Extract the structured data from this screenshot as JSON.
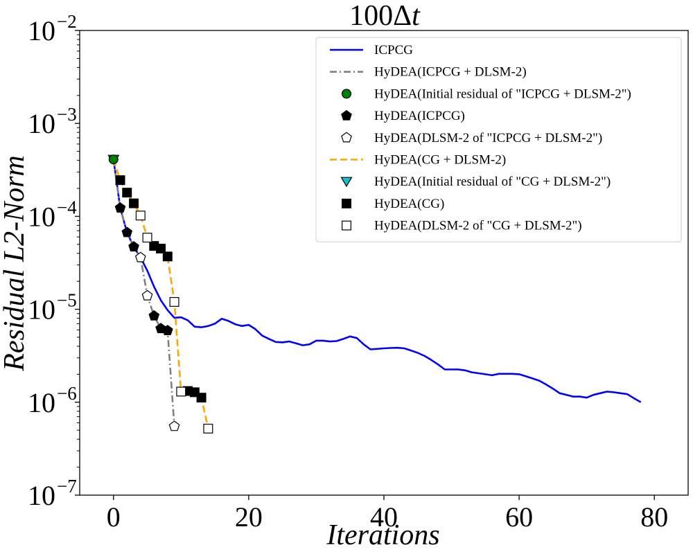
{
  "chart_data": {
    "type": "line",
    "title": "100Δt",
    "title_main": "100Δ",
    "title_var": "t",
    "xlabel": "Iterations",
    "ylabel": "Residual L2-Norm",
    "xlim": [
      -5,
      85
    ],
    "ylim": [
      1e-07,
      0.01
    ],
    "yscale": "log",
    "grid": false,
    "legend_position": "top-right",
    "x_ticks": [
      {
        "value": 0,
        "label": "0"
      },
      {
        "value": 20,
        "label": "20"
      },
      {
        "value": 40,
        "label": "40"
      },
      {
        "value": 60,
        "label": "60"
      },
      {
        "value": 80,
        "label": "80"
      }
    ],
    "y_ticks": [
      {
        "value": 1e-07,
        "base": "10",
        "exp": "−7"
      },
      {
        "value": 1e-06,
        "base": "10",
        "exp": "−6"
      },
      {
        "value": 1e-05,
        "base": "10",
        "exp": "−5"
      },
      {
        "value": 0.0001,
        "base": "10",
        "exp": "−4"
      },
      {
        "value": 0.001,
        "base": "10",
        "exp": "−3"
      },
      {
        "value": 0.01,
        "base": "10",
        "exp": "−2"
      }
    ],
    "series": [
      {
        "name": "ICPCG",
        "kind": "line",
        "color": "#0000ff",
        "dash": "solid",
        "x": [
          0,
          1,
          2,
          3,
          4,
          5,
          6,
          7,
          8,
          9,
          10,
          11,
          12,
          13,
          14,
          15,
          16,
          17,
          18,
          19,
          20,
          21,
          22,
          23,
          24,
          25,
          26,
          27,
          28,
          29,
          30,
          31,
          32,
          33,
          34,
          35,
          36,
          37,
          38,
          39,
          40,
          41,
          42,
          43,
          44,
          45,
          46,
          47,
          48,
          49,
          50,
          51,
          52,
          53,
          54,
          55,
          56,
          57,
          58,
          59,
          60,
          61,
          62,
          63,
          64,
          65,
          66,
          67,
          68,
          69,
          70,
          71,
          72,
          73,
          74,
          75,
          76,
          77,
          78
        ],
        "y": [
          0.00041,
          0.000123,
          6.7e-05,
          4.7e-05,
          3.6e-05,
          2.6e-05,
          1.75e-05,
          1.25e-05,
          9.8e-06,
          8.1e-06,
          8.2e-06,
          7.6e-06,
          6.5e-06,
          6.4e-06,
          6.6e-06,
          7e-06,
          7.9e-06,
          7.5e-06,
          6.9e-06,
          6.6e-06,
          6.8e-06,
          6.1e-06,
          5.2e-06,
          4.8e-06,
          4.45e-06,
          4.4e-06,
          4.5e-06,
          4.3e-06,
          4.1e-06,
          4.2e-06,
          4.6e-06,
          4.6e-06,
          4.5e-06,
          4.55e-06,
          4.8e-06,
          5.1e-06,
          4.9e-06,
          4.2e-06,
          3.7e-06,
          3.75e-06,
          3.8e-06,
          3.83e-06,
          3.85e-06,
          3.8e-06,
          3.6e-06,
          3.4e-06,
          3.15e-06,
          2.85e-06,
          2.55e-06,
          2.25e-06,
          2.25e-06,
          2.25e-06,
          2.2e-06,
          2.1e-06,
          2.05e-06,
          2e-06,
          1.95e-06,
          2.02e-06,
          2.02e-06,
          2.02e-06,
          2e-06,
          1.9e-06,
          1.8e-06,
          1.7e-06,
          1.55e-06,
          1.4e-06,
          1.25e-06,
          1.2e-06,
          1.15e-06,
          1.15e-06,
          1.12e-06,
          1.2e-06,
          1.25e-06,
          1.3e-06,
          1.28e-06,
          1.25e-06,
          1.22e-06,
          1.1e-06,
          1e-06
        ]
      },
      {
        "name": "HyDEA(ICPCG + DLSM-2)",
        "kind": "line",
        "color": "#808080",
        "dash": "dashdot",
        "x": [
          0,
          1,
          2,
          3,
          4,
          5,
          6,
          7,
          8,
          9
        ],
        "y": [
          0.00041,
          0.000123,
          6.7e-05,
          4.7e-05,
          3.6e-05,
          1.4e-05,
          8.5e-06,
          6.2e-06,
          5.9e-06,
          5.5e-07
        ]
      },
      {
        "name": "HyDEA(Initial residual of \"ICPCG + DLSM-2\")",
        "kind": "marker",
        "marker": "circle",
        "color": "#008000",
        "edge": "#000000",
        "x": [
          0
        ],
        "y": [
          0.00041
        ]
      },
      {
        "name": "HyDEA(ICPCG)",
        "kind": "marker",
        "marker": "pentagon",
        "color": "#000000",
        "edge": "#000000",
        "x": [
          1,
          2,
          3,
          6,
          7,
          8
        ],
        "y": [
          0.000123,
          6.7e-05,
          4.7e-05,
          8.5e-06,
          6.2e-06,
          5.9e-06
        ]
      },
      {
        "name": "HyDEA(DLSM-2 of \"ICPCG + DLSM-2\")",
        "kind": "marker",
        "marker": "pentagon",
        "color": "#ffffff",
        "edge": "#000000",
        "x": [
          4,
          5,
          9
        ],
        "y": [
          3.6e-05,
          1.4e-05,
          5.5e-07
        ]
      },
      {
        "name": "HyDEA(CG + DLSM-2)",
        "kind": "line",
        "color": "#ffa500",
        "dash": "dashed",
        "x": [
          0,
          1,
          2,
          3,
          4,
          5,
          6,
          7,
          8,
          9,
          10,
          11,
          12,
          13,
          14
        ],
        "y": [
          0.00041,
          0.000245,
          0.00018,
          0.000138,
          0.000102,
          5.9e-05,
          4.8e-05,
          4.5e-05,
          3.7e-05,
          1.2e-05,
          1.3e-06,
          1.32e-06,
          1.28e-06,
          1.12e-06,
          5.2e-07
        ]
      },
      {
        "name": "HyDEA(Initial residual of \"CG + DLSM-2\")",
        "kind": "marker",
        "marker": "triangle-down",
        "color": "#17becf",
        "edge": "#000000",
        "x": [
          0
        ],
        "y": [
          0.00041
        ]
      },
      {
        "name": "HyDEA(CG)",
        "kind": "marker",
        "marker": "square",
        "color": "#000000",
        "edge": "#000000",
        "x": [
          1,
          2,
          3,
          6,
          7,
          8,
          11,
          12,
          13
        ],
        "y": [
          0.000245,
          0.00018,
          0.000138,
          4.8e-05,
          4.5e-05,
          3.7e-05,
          1.32e-06,
          1.28e-06,
          1.12e-06
        ]
      },
      {
        "name": "HyDEA(DLSM-2 of \"CG + DLSM-2\")",
        "kind": "marker",
        "marker": "square",
        "color": "#ffffff",
        "edge": "#000000",
        "x": [
          4,
          5,
          9,
          10,
          14
        ],
        "y": [
          0.000102,
          5.9e-05,
          1.2e-05,
          1.3e-06,
          5.2e-07
        ]
      }
    ],
    "legend": [
      {
        "label": "ICPCG",
        "kind": "line",
        "color": "#0000ff",
        "dash": "solid"
      },
      {
        "label": "HyDEA(ICPCG + DLSM-2)",
        "kind": "line",
        "color": "#808080",
        "dash": "dashdot"
      },
      {
        "label": "HyDEA(Initial residual of \"ICPCG + DLSM-2\")",
        "kind": "marker",
        "marker": "circle",
        "color": "#008000"
      },
      {
        "label": "HyDEA(ICPCG)",
        "kind": "marker",
        "marker": "pentagon",
        "color": "#000000"
      },
      {
        "label": "HyDEA(DLSM-2 of \"ICPCG + DLSM-2\")",
        "kind": "marker",
        "marker": "pentagon",
        "color": "#ffffff"
      },
      {
        "label": "HyDEA(CG + DLSM-2)",
        "kind": "line",
        "color": "#ffa500",
        "dash": "dashed"
      },
      {
        "label": "HyDEA(Initial residual of \"CG + DLSM-2\")",
        "kind": "marker",
        "marker": "triangle-down",
        "color": "#17becf"
      },
      {
        "label": "HyDEA(CG)",
        "kind": "marker",
        "marker": "square",
        "color": "#000000"
      },
      {
        "label": "HyDEA(DLSM-2 of \"CG + DLSM-2\")",
        "kind": "marker",
        "marker": "square",
        "color": "#ffffff"
      }
    ]
  }
}
